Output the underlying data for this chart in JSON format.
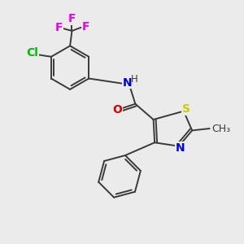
{
  "background_color": "#ebebeb",
  "bond_color": "#3a3a3a",
  "bond_width": 1.4,
  "atom_colors": {
    "N": "#0000dd",
    "O": "#dd0000",
    "S": "#cccc00",
    "Cl": "#00bb00",
    "F": "#ee00ee",
    "C": "#3a3a3a"
  },
  "font_size_atom": 10,
  "font_size_small": 8.5
}
